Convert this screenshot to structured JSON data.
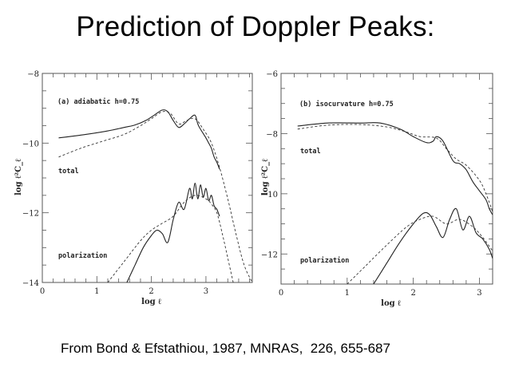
{
  "slide": {
    "title": "Prediction of Doppler Peaks:",
    "caption": "From Bond & Efstathiou, 1987, MNRAS,  226, 655-687"
  },
  "chart_data": [
    {
      "type": "line",
      "title": "(a) adiabatic h=0.75",
      "xlabel": "log ℓ",
      "ylabel": "log ℓ²C_ℓ",
      "xlim": [
        0,
        3.85
      ],
      "ylim": [
        -14,
        -8
      ],
      "xticks": [
        0,
        1,
        2,
        3
      ],
      "xtick_labels": [
        "0",
        "1",
        "2",
        "3"
      ],
      "yticks": [
        -8,
        -10,
        -12,
        -14
      ],
      "ytick_labels": [
        "-8",
        "-10",
        "-12",
        "-14"
      ],
      "grid": false,
      "annotations": [
        "total",
        "polarization"
      ],
      "series": [
        {
          "name": "total (solid)",
          "style": "solid",
          "x": [
            0.3,
            0.8,
            1.2,
            1.5,
            1.7,
            1.9,
            2.05,
            2.2,
            2.3,
            2.4,
            2.5,
            2.6,
            2.7,
            2.8,
            2.85,
            2.9,
            3.0,
            3.05,
            3.1,
            3.15,
            3.2,
            3.25
          ],
          "y": [
            -9.85,
            -9.75,
            -9.65,
            -9.55,
            -9.48,
            -9.35,
            -9.2,
            -9.05,
            -9.1,
            -9.35,
            -9.55,
            -9.45,
            -9.3,
            -9.2,
            -9.45,
            -9.6,
            -9.85,
            -10.0,
            -10.15,
            -10.4,
            -10.55,
            -10.75
          ]
        },
        {
          "name": "total (dashed)",
          "style": "dashed",
          "x": [
            0.3,
            0.7,
            1.1,
            1.5,
            1.8,
            2.0,
            2.2,
            2.35,
            2.5,
            2.65,
            2.8,
            2.95,
            3.1,
            3.25,
            3.4,
            3.55,
            3.7,
            3.85
          ],
          "y": [
            -10.4,
            -10.15,
            -9.95,
            -9.75,
            -9.5,
            -9.3,
            -9.1,
            -9.15,
            -9.45,
            -9.35,
            -9.3,
            -9.6,
            -10.0,
            -10.7,
            -11.6,
            -12.6,
            -13.5,
            -14.0
          ]
        },
        {
          "name": "polarization (solid)",
          "style": "solid",
          "x": [
            1.55,
            1.7,
            1.85,
            2.0,
            2.1,
            2.2,
            2.3,
            2.4,
            2.5,
            2.6,
            2.7,
            2.75,
            2.8,
            2.85,
            2.9,
            2.95,
            3.0,
            3.05,
            3.1,
            3.15,
            3.2,
            3.25
          ],
          "y": [
            -14.0,
            -13.5,
            -13.0,
            -12.65,
            -12.5,
            -12.6,
            -12.85,
            -12.2,
            -11.7,
            -11.9,
            -11.3,
            -11.6,
            -11.15,
            -11.6,
            -11.2,
            -11.55,
            -11.3,
            -11.65,
            -11.5,
            -11.8,
            -11.9,
            -12.1
          ]
        },
        {
          "name": "polarization (dashed)",
          "style": "dashed",
          "x": [
            1.2,
            1.5,
            1.8,
            2.0,
            2.2,
            2.4,
            2.6,
            2.8,
            3.0,
            3.1,
            3.2,
            3.3,
            3.4,
            3.5
          ],
          "y": [
            -14.0,
            -13.4,
            -12.8,
            -12.5,
            -12.3,
            -12.1,
            -11.7,
            -11.5,
            -11.6,
            -11.75,
            -12.0,
            -12.6,
            -13.3,
            -14.0
          ]
        }
      ]
    },
    {
      "type": "line",
      "title": "(b) isocurvature h=0.75",
      "xlabel": "log ℓ",
      "ylabel": "log ℓ²C_ℓ",
      "xlim": [
        0,
        3.2
      ],
      "ylim": [
        -13,
        -6
      ],
      "xticks": [
        0,
        1,
        2,
        3
      ],
      "xtick_labels": [
        "0",
        "1",
        "2",
        "3"
      ],
      "yticks": [
        -6,
        -8,
        -10,
        -12
      ],
      "ytick_labels": [
        "-6",
        "-8",
        "-10",
        "-12"
      ],
      "grid": false,
      "annotations": [
        "total",
        "polarization"
      ],
      "series": [
        {
          "name": "total (solid)",
          "style": "solid",
          "x": [
            0.25,
            0.7,
            1.2,
            1.5,
            1.8,
            2.0,
            2.2,
            2.3,
            2.35,
            2.45,
            2.6,
            2.7,
            2.8,
            2.9,
            3.0,
            3.1,
            3.15,
            3.2
          ],
          "y": [
            -7.75,
            -7.65,
            -7.65,
            -7.65,
            -7.85,
            -8.1,
            -8.3,
            -8.25,
            -8.1,
            -8.25,
            -8.9,
            -9.0,
            -9.2,
            -9.6,
            -9.9,
            -10.2,
            -10.5,
            -10.7
          ]
        },
        {
          "name": "total (dashed)",
          "style": "dashed",
          "x": [
            0.25,
            0.7,
            1.2,
            1.6,
            1.9,
            2.1,
            2.35,
            2.5,
            2.65,
            2.8,
            3.0,
            3.1,
            3.2
          ],
          "y": [
            -7.85,
            -7.72,
            -7.7,
            -7.78,
            -7.95,
            -8.1,
            -8.15,
            -8.5,
            -8.85,
            -9.05,
            -9.55,
            -10.0,
            -10.6
          ]
        },
        {
          "name": "polarization (solid)",
          "style": "solid",
          "x": [
            1.4,
            1.6,
            1.8,
            2.0,
            2.15,
            2.25,
            2.35,
            2.45,
            2.55,
            2.65,
            2.75,
            2.85,
            2.95,
            3.05,
            3.15,
            3.2
          ],
          "y": [
            -13.0,
            -12.3,
            -11.6,
            -11.0,
            -10.65,
            -10.7,
            -11.1,
            -11.45,
            -10.85,
            -10.5,
            -11.2,
            -10.75,
            -11.3,
            -11.5,
            -11.85,
            -12.15
          ]
        },
        {
          "name": "polarization (dashed)",
          "style": "dashed",
          "x": [
            1.0,
            1.3,
            1.6,
            1.9,
            2.1,
            2.3,
            2.5,
            2.7,
            2.9,
            3.05,
            3.2
          ],
          "y": [
            -13.0,
            -12.35,
            -11.7,
            -11.1,
            -10.85,
            -10.75,
            -11.0,
            -10.85,
            -11.1,
            -11.45,
            -11.9
          ]
        }
      ]
    }
  ]
}
